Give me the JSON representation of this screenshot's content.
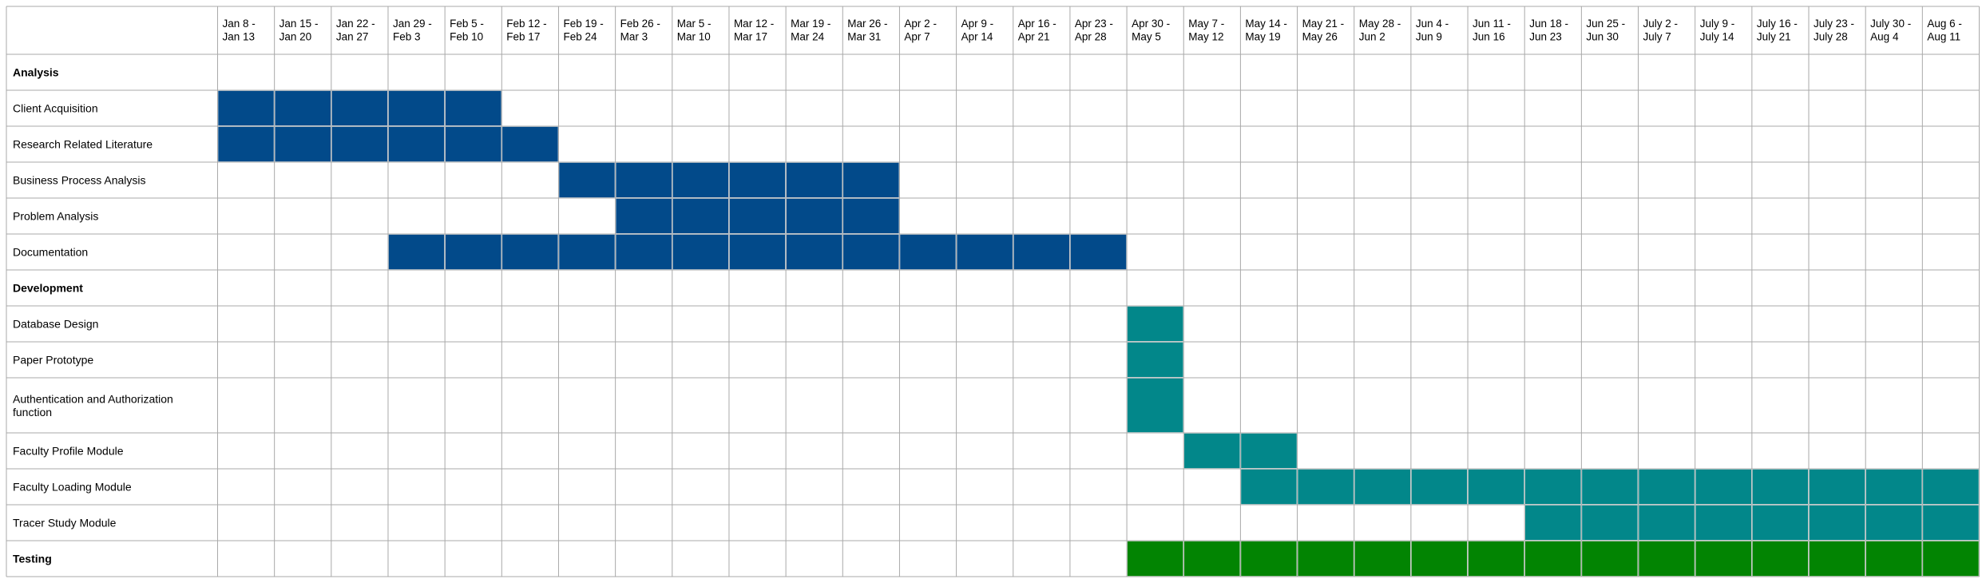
{
  "chart_data": {
    "type": "gantt",
    "columns": [
      [
        "Jan 8 -",
        "Jan 13"
      ],
      [
        "Jan 15 -",
        "Jan 20"
      ],
      [
        "Jan 22 -",
        "Jan 27"
      ],
      [
        "Jan 29 -",
        "Feb 3"
      ],
      [
        "Feb 5 -",
        "Feb 10"
      ],
      [
        "Feb 12 -",
        "Feb 17"
      ],
      [
        "Feb 19 -",
        "Feb 24"
      ],
      [
        "Feb 26 -",
        "Mar 3"
      ],
      [
        "Mar 5 -",
        "Mar 10"
      ],
      [
        "Mar 12 -",
        "Mar 17"
      ],
      [
        "Mar 19 -",
        "Mar 24"
      ],
      [
        "Mar 26 -",
        "Mar 31"
      ],
      [
        "Apr 2 -",
        "Apr 7"
      ],
      [
        "Apr 9 -",
        "Apr 14"
      ],
      [
        "Apr 16 -",
        "Apr 21"
      ],
      [
        "Apr 23 -",
        "Apr 28"
      ],
      [
        "Apr 30 -",
        "May 5"
      ],
      [
        "May 7 -",
        "May 12"
      ],
      [
        "May 14 -",
        "May 19"
      ],
      [
        "May 21 -",
        "May 26"
      ],
      [
        "May 28 -",
        "Jun 2"
      ],
      [
        "Jun 4 -",
        "Jun 9"
      ],
      [
        "Jun 11 -",
        "Jun 16"
      ],
      [
        "Jun 18 -",
        "Jun 23"
      ],
      [
        "Jun 25 -",
        "Jun 30"
      ],
      [
        "July 2 -",
        "July 7"
      ],
      [
        "July 9 -",
        "July 14"
      ],
      [
        "July 16 -",
        "July 21"
      ],
      [
        "July 23 -",
        "July 28"
      ],
      [
        "July 30 -",
        "Aug 4"
      ],
      [
        "Aug 6 -",
        "Aug 11"
      ]
    ],
    "rows": [
      {
        "label": [
          "Analysis"
        ],
        "header": true
      },
      {
        "label": [
          "Client Acquisition"
        ],
        "start": 0,
        "end": 4,
        "phase": "analysis"
      },
      {
        "label": [
          "Research Related Literature"
        ],
        "start": 0,
        "end": 5,
        "phase": "analysis"
      },
      {
        "label": [
          "Business Process Analysis"
        ],
        "start": 6,
        "end": 11,
        "phase": "analysis"
      },
      {
        "label": [
          "Problem Analysis"
        ],
        "start": 7,
        "end": 11,
        "phase": "analysis"
      },
      {
        "label": [
          "Documentation"
        ],
        "start": 3,
        "end": 15,
        "phase": "analysis"
      },
      {
        "label": [
          "Development"
        ],
        "header": true
      },
      {
        "label": [
          "Database Design"
        ],
        "start": 16,
        "end": 16,
        "phase": "development"
      },
      {
        "label": [
          "Paper Prototype"
        ],
        "start": 16,
        "end": 16,
        "phase": "development"
      },
      {
        "label": [
          "Authentication and Authorization",
          "function"
        ],
        "start": 16,
        "end": 16,
        "phase": "development"
      },
      {
        "label": [
          "Faculty Profile Module"
        ],
        "start": 17,
        "end": 18,
        "phase": "development"
      },
      {
        "label": [
          "Faculty Loading Module"
        ],
        "start": 18,
        "end": 30,
        "phase": "development"
      },
      {
        "label": [
          "Tracer Study Module"
        ],
        "start": 23,
        "end": 30,
        "phase": "development"
      },
      {
        "label": [
          "Testing"
        ],
        "header": true,
        "start": 16,
        "end": 30,
        "phase": "testing"
      }
    ],
    "colors": {
      "analysis": "#024a8a",
      "development": "#02878a",
      "testing": "#028402"
    }
  }
}
